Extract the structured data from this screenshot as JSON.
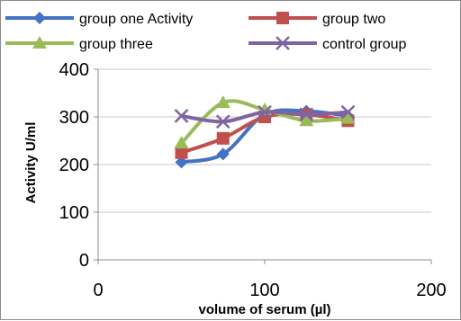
{
  "chart_data": {
    "type": "line",
    "title": "",
    "xlabel": "volume of serum (µl)",
    "ylabel": "Activity U/ml",
    "xlim": [
      0,
      200
    ],
    "ylim": [
      0,
      400
    ],
    "xticks": [
      0,
      100,
      200
    ],
    "yticks": [
      0,
      100,
      200,
      300,
      400
    ],
    "grid": true,
    "smooth": true,
    "legend_position": "top",
    "series": [
      {
        "name": "group one Activity",
        "color": "#4472C4",
        "marker": "diamond",
        "x": [
          50,
          75,
          100,
          125,
          150
        ],
        "y": [
          205,
          222,
          305,
          312,
          302
        ]
      },
      {
        "name": "group two",
        "color": "#C0504D",
        "marker": "square",
        "x": [
          50,
          75,
          100,
          125,
          150
        ],
        "y": [
          225,
          255,
          300,
          305,
          292
        ]
      },
      {
        "name": "group three",
        "color": "#9BBB59",
        "marker": "triangle",
        "x": [
          50,
          75,
          100,
          125,
          150
        ],
        "y": [
          245,
          330,
          315,
          292,
          297
        ]
      },
      {
        "name": "control group",
        "color": "#8064A2",
        "marker": "x",
        "x": [
          50,
          75,
          100,
          125,
          150
        ],
        "y": [
          302,
          290,
          310,
          305,
          310
        ]
      }
    ]
  }
}
